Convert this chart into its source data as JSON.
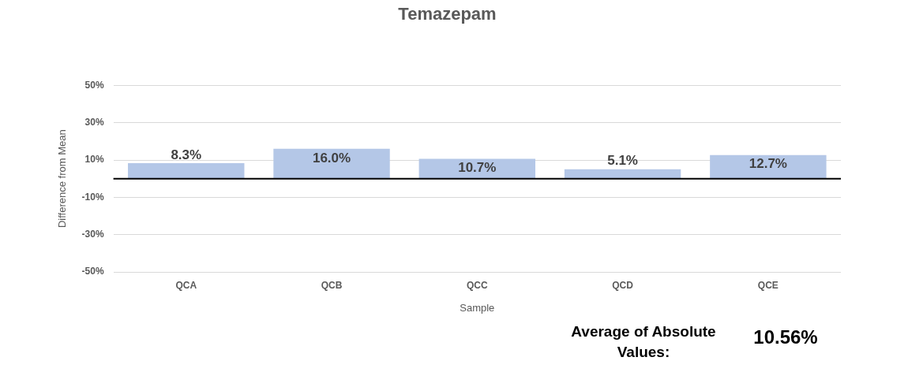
{
  "chart_data": {
    "type": "bar",
    "title": "Temazepam",
    "xlabel": "Sample",
    "ylabel": "Difference from Mean",
    "categories": [
      "QCA",
      "QCB",
      "QCC",
      "QCD",
      "QCE"
    ],
    "values": [
      8.3,
      16.0,
      10.7,
      5.1,
      12.7
    ],
    "value_labels": [
      "8.3%",
      "16.0%",
      "10.7%",
      "5.1%",
      "12.7%"
    ],
    "color": "#b4c7e7",
    "ylim": [
      -50,
      50
    ],
    "yticks": [
      {
        "value": -50,
        "label": "-50%"
      },
      {
        "value": -30,
        "label": "-30%"
      },
      {
        "value": -10,
        "label": "-10%"
      },
      {
        "value": 10,
        "label": "10%"
      },
      {
        "value": 30,
        "label": "30%"
      },
      {
        "value": 50,
        "label": "50%"
      }
    ],
    "grid": "y",
    "legend": false,
    "annotations": [
      "Average of Absolute Values:",
      "10.56%"
    ]
  }
}
